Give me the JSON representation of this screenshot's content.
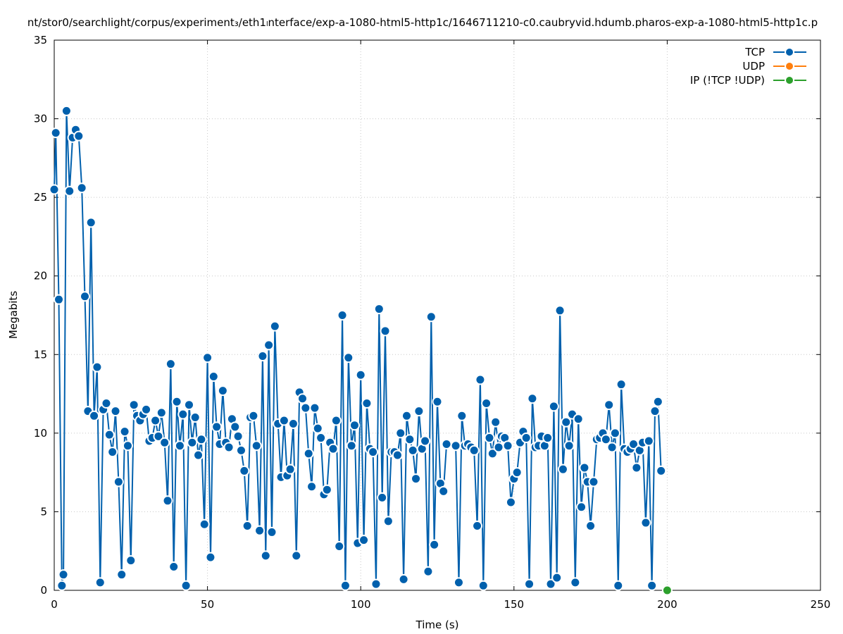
{
  "chart_data": {
    "type": "line",
    "title": "nt/stor0/searchlight/corpus/experiment₃/eth1ₗnterface/exp-a-1080-html5-http1c/1646711210-c0.caubryvid.hdumb.pharos-exp-a-1080-html5-http1c.p",
    "xlabel": "Time (s)",
    "ylabel": "Megabits",
    "xlim": [
      0,
      250
    ],
    "ylim": [
      0,
      35
    ],
    "xticks": [
      "0",
      "50",
      "100",
      "150",
      "200",
      "250"
    ],
    "yticks": [
      "0",
      "5",
      "10",
      "15",
      "20",
      "25",
      "30",
      "35"
    ],
    "grid": true,
    "legend_position": "top-right",
    "series": [
      {
        "name": "TCP",
        "color": "#0060ad",
        "points": [
          [
            0,
            25.5
          ],
          [
            0.5,
            29.1
          ],
          [
            1.5,
            18.5
          ],
          [
            2.5,
            0.3
          ],
          [
            3,
            1.0
          ],
          [
            4,
            30.5
          ],
          [
            5,
            25.4
          ],
          [
            6,
            28.8
          ],
          [
            7,
            29.3
          ],
          [
            8,
            28.9
          ],
          [
            9,
            25.6
          ],
          [
            10,
            18.7
          ],
          [
            11,
            11.4
          ],
          [
            12,
            23.4
          ],
          [
            13,
            11.1
          ],
          [
            14,
            14.2
          ],
          [
            15,
            0.5
          ],
          [
            16,
            11.5
          ],
          [
            17,
            11.9
          ],
          [
            18,
            9.9
          ],
          [
            19,
            8.8
          ],
          [
            20,
            11.4
          ],
          [
            21,
            6.9
          ],
          [
            22,
            1.0
          ],
          [
            23,
            10.1
          ],
          [
            24,
            9.2
          ],
          [
            25,
            1.9
          ],
          [
            26,
            11.8
          ],
          [
            27,
            11.1
          ],
          [
            28,
            10.8
          ],
          [
            29,
            11.2
          ],
          [
            30,
            11.5
          ],
          [
            31,
            9.5
          ],
          [
            32,
            9.7
          ],
          [
            33,
            10.8
          ],
          [
            34,
            9.8
          ],
          [
            35,
            11.3
          ],
          [
            36,
            9.4
          ],
          [
            37,
            5.7
          ],
          [
            38,
            14.4
          ],
          [
            39,
            1.5
          ],
          [
            40,
            12.0
          ],
          [
            41,
            9.2
          ],
          [
            42,
            11.2
          ],
          [
            43,
            0.3
          ],
          [
            44,
            11.8
          ],
          [
            45,
            9.4
          ],
          [
            46,
            11.0
          ],
          [
            47,
            8.6
          ],
          [
            48,
            9.6
          ],
          [
            49,
            4.2
          ],
          [
            50,
            14.8
          ],
          [
            51,
            2.1
          ],
          [
            52,
            13.6
          ],
          [
            53,
            10.4
          ],
          [
            54,
            9.3
          ],
          [
            55,
            12.7
          ],
          [
            56,
            9.4
          ],
          [
            57,
            9.1
          ],
          [
            58,
            10.9
          ],
          [
            59,
            10.4
          ],
          [
            60,
            9.8
          ],
          [
            61,
            8.9
          ],
          [
            62,
            7.6
          ],
          [
            63,
            4.1
          ],
          [
            64,
            11.0
          ],
          [
            65,
            11.1
          ],
          [
            66,
            9.2
          ],
          [
            67,
            3.8
          ],
          [
            68,
            14.9
          ],
          [
            69,
            2.2
          ],
          [
            70,
            15.6
          ],
          [
            71,
            3.7
          ],
          [
            72,
            16.8
          ],
          [
            73,
            10.6
          ],
          [
            74,
            7.2
          ],
          [
            75,
            10.8
          ],
          [
            76,
            7.3
          ],
          [
            77,
            7.7
          ],
          [
            78,
            10.6
          ],
          [
            79,
            2.2
          ],
          [
            80,
            12.6
          ],
          [
            81,
            12.2
          ],
          [
            82,
            11.6
          ],
          [
            83,
            8.7
          ],
          [
            84,
            6.6
          ],
          [
            85,
            11.6
          ],
          [
            86,
            10.3
          ],
          [
            87,
            9.7
          ],
          [
            88,
            6.1
          ],
          [
            89,
            6.4
          ],
          [
            90,
            9.4
          ],
          [
            91,
            9.0
          ],
          [
            92,
            10.8
          ],
          [
            93,
            2.8
          ],
          [
            94,
            17.5
          ],
          [
            95,
            0.3
          ],
          [
            96,
            14.8
          ],
          [
            97,
            9.2
          ],
          [
            98,
            10.5
          ],
          [
            99,
            3.0
          ],
          [
            100,
            13.7
          ],
          [
            101,
            3.2
          ],
          [
            102,
            11.9
          ],
          [
            103,
            9.0
          ],
          [
            104,
            8.8
          ],
          [
            105,
            0.4
          ],
          [
            106,
            17.9
          ],
          [
            107,
            5.9
          ],
          [
            108,
            16.5
          ],
          [
            109,
            4.4
          ],
          [
            110,
            8.8
          ],
          [
            111,
            8.8
          ],
          [
            112,
            8.6
          ],
          [
            113,
            10.0
          ],
          [
            114,
            0.7
          ],
          [
            115,
            11.1
          ],
          [
            116,
            9.6
          ],
          [
            117,
            8.9
          ],
          [
            118,
            7.1
          ],
          [
            119,
            11.4
          ],
          [
            120,
            9.0
          ],
          [
            121,
            9.5
          ],
          [
            122,
            1.2
          ],
          [
            123,
            17.4
          ],
          [
            124,
            2.9
          ],
          [
            125,
            12.0
          ],
          [
            126,
            6.8
          ],
          [
            127,
            6.3
          ],
          [
            128,
            9.3
          ],
          [
            131,
            9.2
          ],
          [
            132,
            0.5
          ],
          [
            133,
            11.1
          ],
          [
            134,
            9.2
          ],
          [
            135,
            9.3
          ],
          [
            136,
            9.1
          ],
          [
            137,
            8.9
          ],
          [
            138,
            4.1
          ],
          [
            139,
            13.4
          ],
          [
            140,
            0.3
          ],
          [
            141,
            11.9
          ],
          [
            142,
            9.7
          ],
          [
            143,
            8.7
          ],
          [
            144,
            10.7
          ],
          [
            145,
            9.1
          ],
          [
            146,
            9.8
          ],
          [
            147,
            9.7
          ],
          [
            148,
            9.2
          ],
          [
            149,
            5.6
          ],
          [
            150,
            7.1
          ],
          [
            151,
            7.5
          ],
          [
            152,
            9.4
          ],
          [
            153,
            10.1
          ],
          [
            154,
            9.7
          ],
          [
            155,
            0.4
          ],
          [
            156,
            12.2
          ],
          [
            157,
            9.1
          ],
          [
            158,
            9.2
          ],
          [
            159,
            9.8
          ],
          [
            160,
            9.2
          ],
          [
            161,
            9.7
          ],
          [
            162,
            0.4
          ],
          [
            163,
            11.7
          ],
          [
            164,
            0.8
          ],
          [
            165,
            17.8
          ],
          [
            166,
            7.7
          ],
          [
            167,
            10.7
          ],
          [
            168,
            9.2
          ],
          [
            169,
            11.2
          ],
          [
            170,
            0.5
          ],
          [
            171,
            10.9
          ],
          [
            172,
            5.3
          ],
          [
            173,
            7.8
          ],
          [
            174,
            6.9
          ],
          [
            175,
            4.1
          ],
          [
            176,
            6.9
          ],
          [
            177,
            9.6
          ],
          [
            178,
            9.7
          ],
          [
            179,
            10.0
          ],
          [
            180,
            9.6
          ],
          [
            181,
            11.8
          ],
          [
            182,
            9.1
          ],
          [
            183,
            10.0
          ],
          [
            184,
            0.3
          ],
          [
            185,
            13.1
          ],
          [
            186,
            9.0
          ],
          [
            187,
            8.8
          ],
          [
            188,
            9.0
          ],
          [
            189,
            9.3
          ],
          [
            190,
            7.8
          ],
          [
            191,
            8.9
          ],
          [
            192,
            9.4
          ],
          [
            193,
            4.3
          ],
          [
            194,
            9.5
          ],
          [
            195,
            0.3
          ],
          [
            196,
            11.4
          ],
          [
            197,
            12.0
          ],
          [
            198,
            7.6
          ]
        ]
      },
      {
        "name": "UDP",
        "color": "#ff7f0e",
        "points": []
      },
      {
        "name": "IP (!TCP  !UDP)",
        "color": "#2ca02c",
        "points": [
          [
            200,
            0
          ]
        ]
      }
    ]
  }
}
